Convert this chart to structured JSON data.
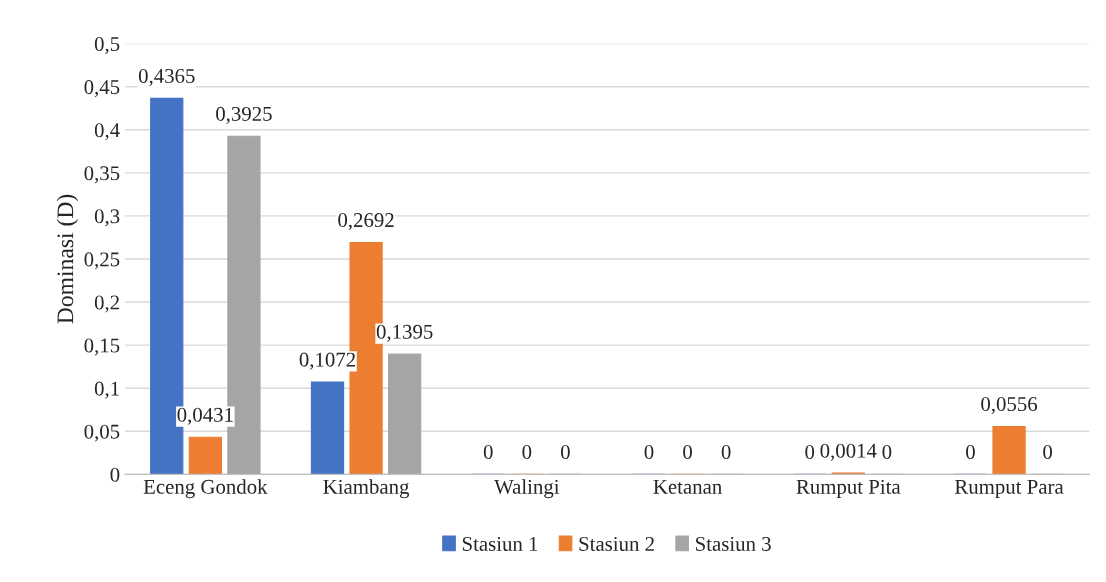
{
  "chart_data": {
    "type": "bar",
    "ylabel": "Dominasi (D)",
    "categories": [
      "Eceng Gondok",
      "Kiambang",
      "Walingi",
      "Ketanan",
      "Rumput Pita",
      "Rumput Para"
    ],
    "series": [
      {
        "name": "Stasiun 1",
        "color": "#4472c4",
        "values": [
          0.4365,
          0.1072,
          0,
          0,
          0,
          0
        ],
        "value_labels": [
          "0,4365",
          "0,1072",
          "0",
          "0",
          "0",
          "0"
        ]
      },
      {
        "name": "Stasiun 2",
        "color": "#ed7d31",
        "values": [
          0.0431,
          0.2692,
          0,
          0,
          0.0014,
          0.0556
        ],
        "value_labels": [
          "0,0431",
          "0,2692",
          "0",
          "0",
          "0,0014",
          "0,0556"
        ]
      },
      {
        "name": "Stasiun 3",
        "color": "#a5a5a5",
        "values": [
          0.3925,
          0.1395,
          0,
          0,
          0,
          0
        ],
        "value_labels": [
          "0,3925",
          "0,1395",
          "0",
          "0",
          "0",
          "0"
        ]
      }
    ],
    "ylim": [
      0,
      0.5
    ],
    "yticks": [
      0,
      {
        "value": 0.05,
        "label": "0,05"
      },
      {
        "value": 0.1,
        "label": "0,1"
      },
      {
        "value": 0.15,
        "label": "0,15"
      },
      {
        "value": 0.2,
        "label": "0,2"
      },
      {
        "value": 0.25,
        "label": "0,25"
      },
      {
        "value": 0.3,
        "label": "0,3"
      },
      {
        "value": 0.35,
        "label": "0,35"
      },
      {
        "value": 0.4,
        "label": "0,4"
      },
      {
        "value": 0.45,
        "label": "0,45"
      },
      {
        "value": 0.5,
        "label": "0,5"
      }
    ],
    "grid": "y",
    "legend": "bottom"
  }
}
